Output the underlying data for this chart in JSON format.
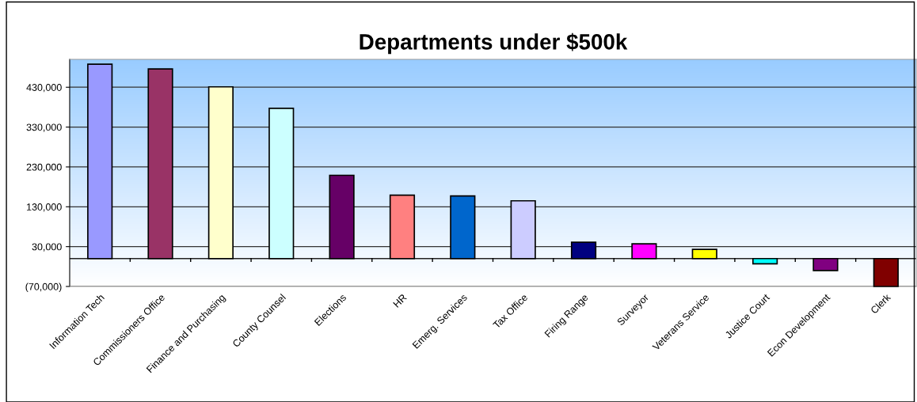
{
  "chart_data": {
    "type": "bar",
    "title": "Departments under $500k",
    "categories": [
      "Information Tech",
      "Commissioners Office",
      "Finance and Purchasing",
      "County Counsel",
      "Elections",
      "HR",
      "Emerg. Services",
      "Tax Office",
      "Firing Range",
      "Surveyor",
      "Veterans Service",
      "Justice Court",
      "Econ Development",
      "Clerk"
    ],
    "values": [
      488000,
      476000,
      431000,
      377000,
      209000,
      159000,
      157000,
      145000,
      41000,
      37000,
      23000,
      -13000,
      -30000,
      -70000
    ],
    "colors": [
      "#9999ff",
      "#993366",
      "#ffffcc",
      "#ccffff",
      "#660066",
      "#ff8080",
      "#0066cc",
      "#ccccff",
      "#000080",
      "#ff00ff",
      "#ffff00",
      "#00ffff",
      "#800080",
      "#800000"
    ],
    "ylim": [
      -70000,
      500000
    ],
    "yticks": [
      {
        "value": -70000,
        "label": "(70,000)"
      },
      {
        "value": 30000,
        "label": "30,000"
      },
      {
        "value": 130000,
        "label": "130,000"
      },
      {
        "value": 230000,
        "label": "230,000"
      },
      {
        "value": 330000,
        "label": "330,000"
      },
      {
        "value": 430000,
        "label": "430,000"
      }
    ],
    "grid": "y",
    "legend": false
  }
}
